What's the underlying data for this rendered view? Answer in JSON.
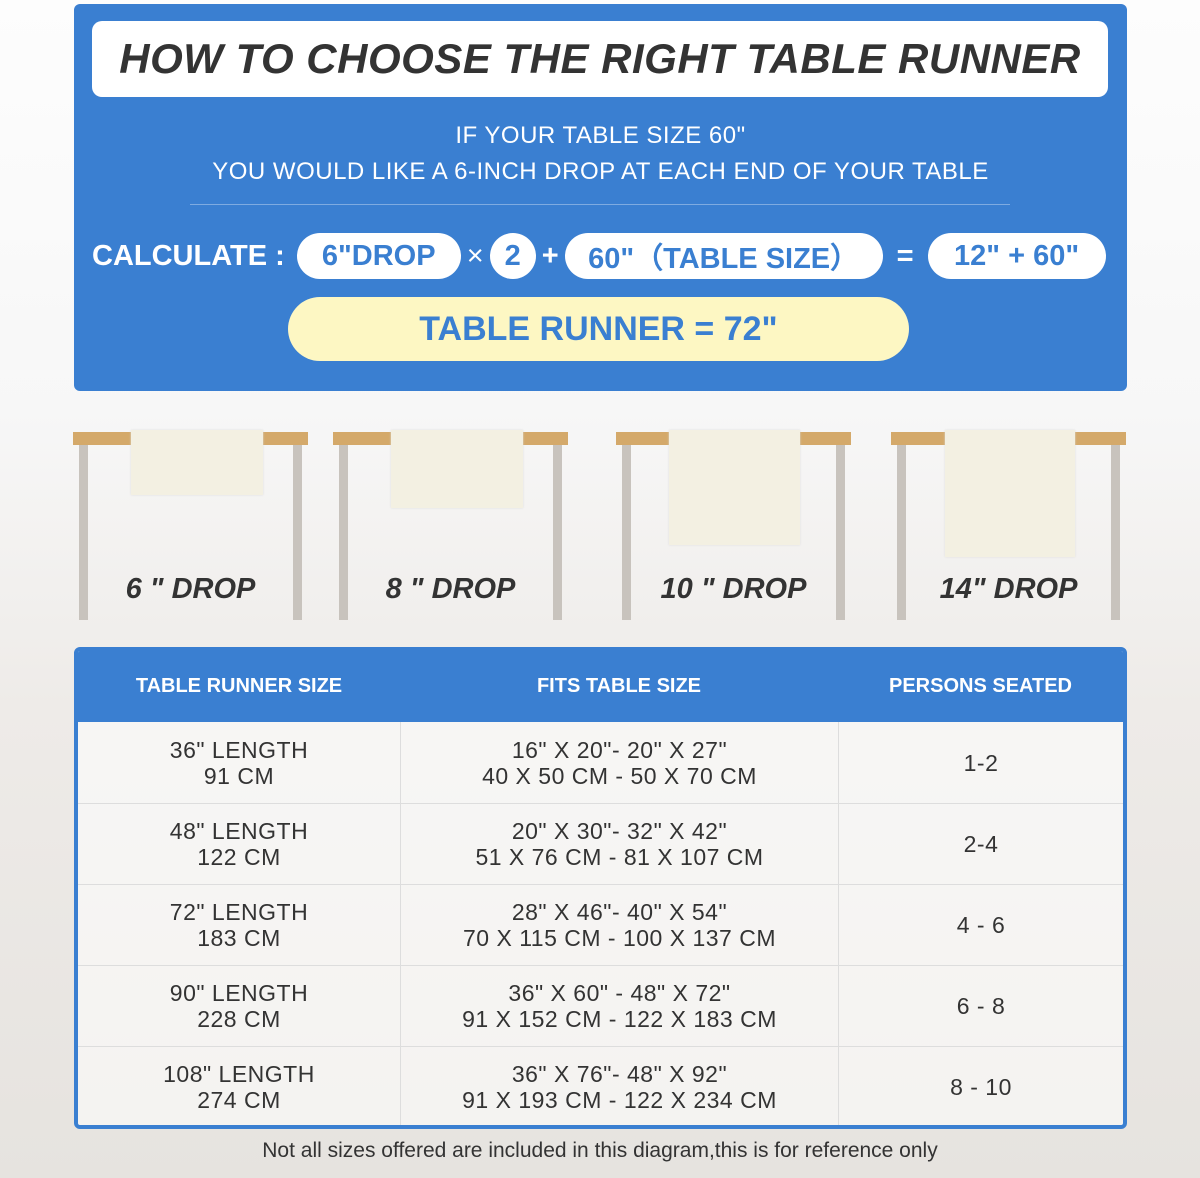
{
  "header": {
    "title": "HOW TO CHOOSE THE RIGHT TABLE RUNNER",
    "line1": "IF YOUR TABLE SIZE 60\"",
    "line2": "YOU WOULD LIKE A 6-INCH DROP AT EACH END OF YOUR TABLE"
  },
  "calc": {
    "label": "CALCULATE :",
    "drop": "6\"DROP",
    "times": "×",
    "multiplier": "2",
    "plus": "+",
    "table_size": "60\"（TABLE SIZE）",
    "equals": "=",
    "sum": "12\" + 60\"",
    "result": "TABLE RUNNER = 72\""
  },
  "drops": [
    {
      "label": "6 \" DROP"
    },
    {
      "label": "8 \" DROP"
    },
    {
      "label": "10 \" DROP"
    },
    {
      "label": "14\" DROP"
    }
  ],
  "table": {
    "headers": [
      "TABLE RUNNER SIZE",
      "FITS TABLE SIZE",
      "PERSONS SEATED"
    ],
    "rows": [
      {
        "size": [
          "36\" LENGTH",
          "91 CM"
        ],
        "fits": [
          "16\" X 20\"- 20\" X 27\"",
          "40 X 50 CM - 50 X 70 CM"
        ],
        "persons": "1-2"
      },
      {
        "size": [
          "48\" LENGTH",
          "122 CM"
        ],
        "fits": [
          "20\" X 30\"- 32\" X 42\"",
          "51 X 76 CM - 81 X 107 CM"
        ],
        "persons": "2-4"
      },
      {
        "size": [
          "72\" LENGTH",
          "183 CM"
        ],
        "fits": [
          "28\" X 46\"- 40\" X 54\"",
          "70 X 115 CM - 100 X 137 CM"
        ],
        "persons": "4 - 6"
      },
      {
        "size": [
          "90\" LENGTH",
          "228 CM"
        ],
        "fits": [
          "36\" X 60\" - 48\" X 72\"",
          "91 X 152 CM - 122 X 183 CM"
        ],
        "persons": "6 - 8"
      },
      {
        "size": [
          "108\" LENGTH",
          "274 CM"
        ],
        "fits": [
          "36\" X 76\"- 48\" X 92\"",
          "91 X 193 CM - 122 X 234 CM"
        ],
        "persons": "8 - 10"
      }
    ]
  },
  "footnote": "Not all sizes offered are included in this diagram,this is for reference only",
  "colors": {
    "brand_blue": "#3a7fd1",
    "highlight_yellow": "#fdf7c3",
    "table_top": "#d4a96a"
  }
}
